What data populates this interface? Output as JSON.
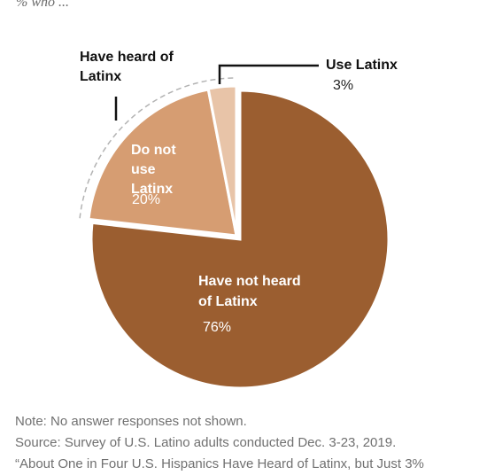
{
  "header": {
    "subtitle": "% who ..."
  },
  "chart_data": {
    "type": "pie",
    "slices": [
      {
        "label": "Have not heard of Latinx",
        "value": 76,
        "value_label": "76%",
        "color": "#9b5e30"
      },
      {
        "label": "Do not use Latinx",
        "value": 20,
        "value_label": "20%",
        "color": "#d69d72"
      },
      {
        "label": "Use Latinx",
        "value": 3,
        "value_label": "3%",
        "color": "#e8c4a8"
      }
    ],
    "group_annotation": "Have heard of Latinx",
    "legend": "none"
  },
  "footer": {
    "note": "Note: No answer responses not shown.",
    "source": "Source: Survey of U.S. Latino adults conducted Dec. 3-23, 2019.",
    "citation": "“About One in Four U.S. Hispanics Have Heard of Latinx, but Just 3%"
  }
}
